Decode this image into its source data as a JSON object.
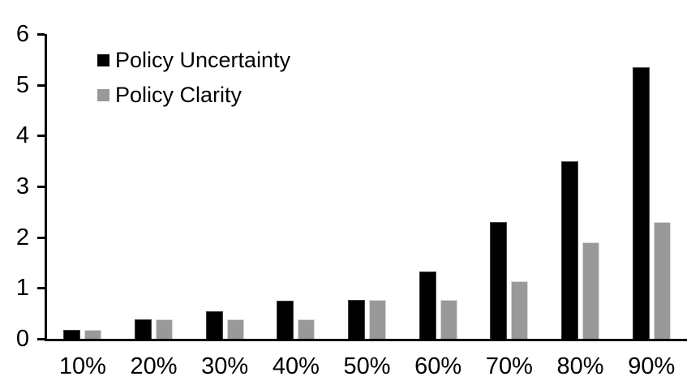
{
  "chart_data": {
    "type": "bar",
    "title": "",
    "xlabel": "",
    "ylabel": "",
    "categories": [
      "10%",
      "20%",
      "30%",
      "40%",
      "50%",
      "60%",
      "70%",
      "80%",
      "90%"
    ],
    "series": [
      {
        "name": "Policy Uncertainty",
        "color": "#000000",
        "values": [
          0.18,
          0.38,
          0.55,
          0.75,
          0.77,
          1.33,
          2.3,
          3.5,
          5.35
        ]
      },
      {
        "name": "Policy Clarity",
        "color": "#999999",
        "values": [
          0.18,
          0.38,
          0.38,
          0.38,
          0.76,
          0.76,
          1.13,
          1.9,
          2.3
        ]
      }
    ],
    "ylim": [
      0,
      6
    ],
    "yticks": [
      0,
      1,
      2,
      3,
      4,
      5,
      6
    ],
    "grid": false,
    "legend_position": "top-left-inside"
  },
  "colors": {
    "axis": "#000000",
    "background": "#ffffff",
    "bar_uncertainty": "#000000",
    "bar_clarity": "#999999",
    "bar_clarity_border": "#d9d9d9"
  }
}
